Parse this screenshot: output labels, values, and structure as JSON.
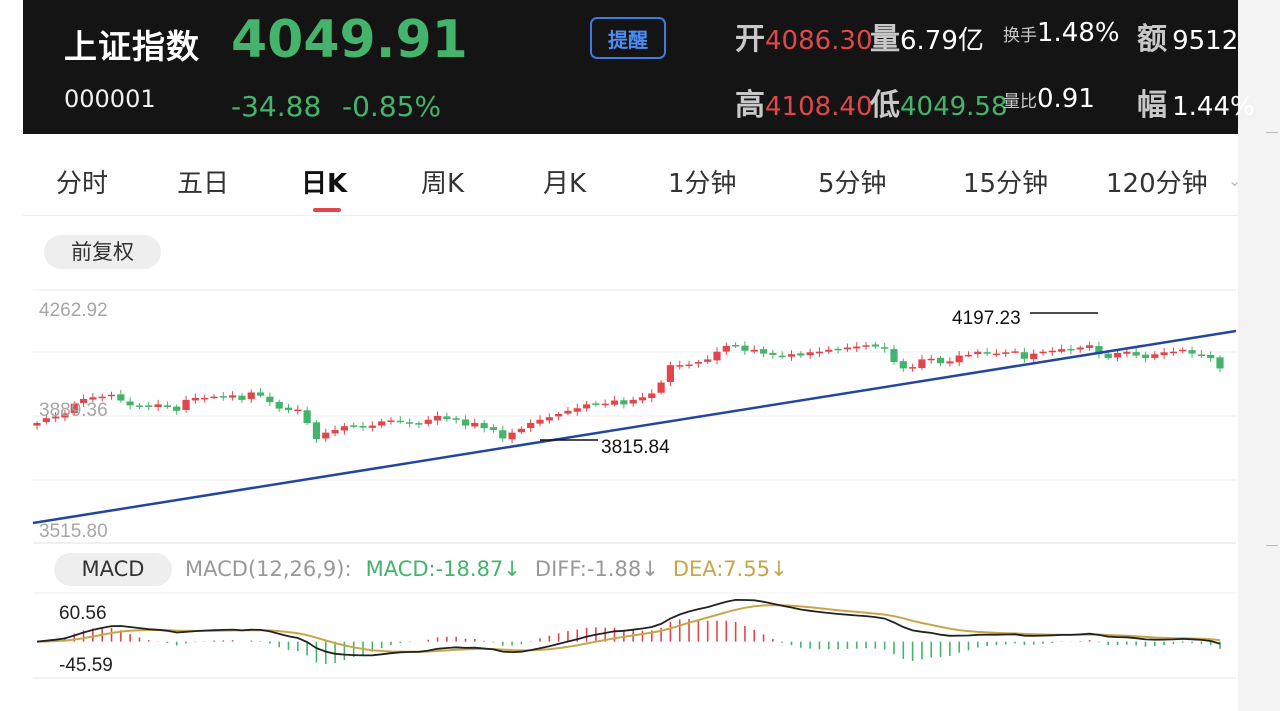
{
  "header": {
    "name": "上证指数",
    "code": "000001",
    "price": "4049.91",
    "change": "-34.88",
    "change_pct": "-0.85%",
    "alert_button": "提醒",
    "stats": {
      "open_label": "开",
      "open": "4086.30",
      "volume_label": "量",
      "volume": "6.79亿",
      "turnover_label": "换手",
      "turnover": "1.48%",
      "amount_label": "额",
      "amount": "9512",
      "high_label": "高",
      "high": "4108.40",
      "low_label": "低",
      "low": "4049.58",
      "vol_ratio_label": "量比",
      "vol_ratio": "0.91",
      "amplitude_label": "幅",
      "amplitude": "1.44%"
    }
  },
  "tabs": [
    "分时",
    "五日",
    "日K",
    "周K",
    "月K",
    "1分钟",
    "5分钟",
    "15分钟",
    "120分钟"
  ],
  "active_tab": "日K",
  "adjust_button": "前复权",
  "colors": {
    "up": "#e0464b",
    "down": "#44b36b",
    "trendline": "#2346a0",
    "dea": "#c7a64a",
    "diff": "#222222"
  },
  "chart_data": {
    "type": "candlestick",
    "y_labels": [
      "4262.92",
      "3889.36",
      "3515.80"
    ],
    "ylim": [
      3515.8,
      4262.92
    ],
    "annotations": [
      {
        "text": "4197.23",
        "value": 4197.23
      },
      {
        "text": "3815.84",
        "value": 3815.84
      }
    ],
    "trendline": "rising support line",
    "closes": [
      3880,
      3895,
      3900,
      3910,
      3940,
      3955,
      3960,
      3962,
      3968,
      3950,
      3935,
      3932,
      3930,
      3938,
      3930,
      3918,
      3952,
      3958,
      3958,
      3962,
      3962,
      3966,
      3952,
      3975,
      3965,
      3945,
      3925,
      3920,
      3922,
      3880,
      3830,
      3850,
      3858,
      3870,
      3870,
      3868,
      3872,
      3885,
      3888,
      3885,
      3878,
      3875,
      3890,
      3902,
      3892,
      3890,
      3872,
      3880,
      3864,
      3858,
      3832,
      3850,
      3862,
      3880,
      3890,
      3898,
      3908,
      3918,
      3926,
      3938,
      3940,
      3940,
      3950,
      3938,
      3952,
      3960,
      3972,
      4006,
      4060,
      4060,
      4062,
      4070,
      4078,
      4102,
      4120,
      4122,
      4105,
      4108,
      4096,
      4092,
      4088,
      4094,
      4090,
      4100,
      4102,
      4108,
      4110,
      4115,
      4118,
      4122,
      4118,
      4112,
      4070,
      4050,
      4054,
      4078,
      4080,
      4066,
      4072,
      4090,
      4092,
      4102,
      4098,
      4096,
      4100,
      4103,
      4080,
      4096,
      4102,
      4105,
      4110,
      4106,
      4115,
      4122,
      4094,
      4082,
      4098,
      4102,
      4090,
      4082,
      4094,
      4100,
      4102,
      4108,
      4096,
      4090,
      4082,
      4049.91
    ],
    "macd": {
      "label": "MACD",
      "params": "MACD(12,26,9):",
      "macd_text": "MACD:-18.87↓",
      "diff_text": "DIFF:-1.88↓",
      "dea_text": "DEA:7.55↓",
      "y_labels": [
        "60.56",
        "-45.59"
      ],
      "ylim": [
        -45.59,
        60.56
      ]
    }
  }
}
